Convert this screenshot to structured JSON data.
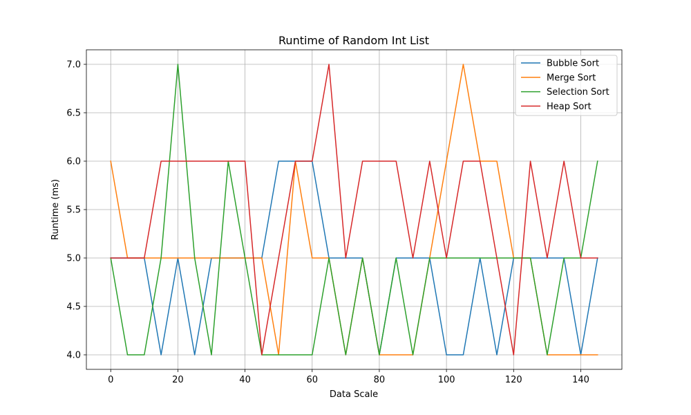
{
  "chart_data": {
    "type": "line",
    "title": "Runtime of Random Int List",
    "xlabel": "Data Scale",
    "ylabel": "Runtime (ms)",
    "xlim": [
      -7.25,
      152.25
    ],
    "ylim": [
      3.85,
      7.15
    ],
    "x_ticks": [
      0,
      20,
      40,
      60,
      80,
      100,
      120,
      140
    ],
    "y_ticks": [
      4.0,
      4.5,
      5.0,
      5.5,
      6.0,
      6.5,
      7.0
    ],
    "x_tick_labels": [
      "0",
      "20",
      "40",
      "60",
      "80",
      "100",
      "120",
      "140"
    ],
    "y_tick_labels": [
      "4.0",
      "4.5",
      "5.0",
      "5.5",
      "6.0",
      "6.5",
      "7.0"
    ],
    "grid": true,
    "legend_position": "top-right",
    "x": [
      0,
      5,
      10,
      15,
      20,
      25,
      30,
      35,
      40,
      45,
      50,
      55,
      60,
      65,
      70,
      75,
      80,
      85,
      90,
      95,
      100,
      105,
      110,
      115,
      120,
      125,
      130,
      135,
      140,
      145
    ],
    "series": [
      {
        "name": "Bubble Sort",
        "color": "#1f77b4",
        "values": [
          5,
          5,
          5,
          4,
          5,
          4,
          5,
          5,
          5,
          5,
          6,
          6,
          6,
          5,
          5,
          5,
          4,
          5,
          5,
          5,
          4,
          4,
          5,
          4,
          5,
          5,
          5,
          5,
          4,
          5
        ]
      },
      {
        "name": "Merge Sort",
        "color": "#ff7f0e",
        "values": [
          6,
          5,
          5,
          5,
          5,
          5,
          5,
          5,
          5,
          5,
          4,
          6,
          5,
          5,
          4,
          5,
          4,
          4,
          4,
          5,
          6,
          7,
          6,
          6,
          5,
          5,
          4,
          4,
          4,
          4
        ]
      },
      {
        "name": "Selection Sort",
        "color": "#2ca02c",
        "values": [
          5,
          4,
          4,
          5,
          7,
          5,
          4,
          6,
          5,
          4,
          4,
          4,
          4,
          5,
          4,
          5,
          4,
          5,
          4,
          5,
          5,
          5,
          5,
          5,
          5,
          5,
          4,
          5,
          5,
          6
        ]
      },
      {
        "name": "Heap Sort",
        "color": "#d62728",
        "values": [
          5,
          5,
          5,
          6,
          6,
          6,
          6,
          6,
          6,
          4,
          5,
          6,
          6,
          7,
          5,
          6,
          6,
          6,
          5,
          6,
          5,
          6,
          6,
          5,
          4,
          6,
          5,
          6,
          5,
          5
        ]
      }
    ]
  }
}
